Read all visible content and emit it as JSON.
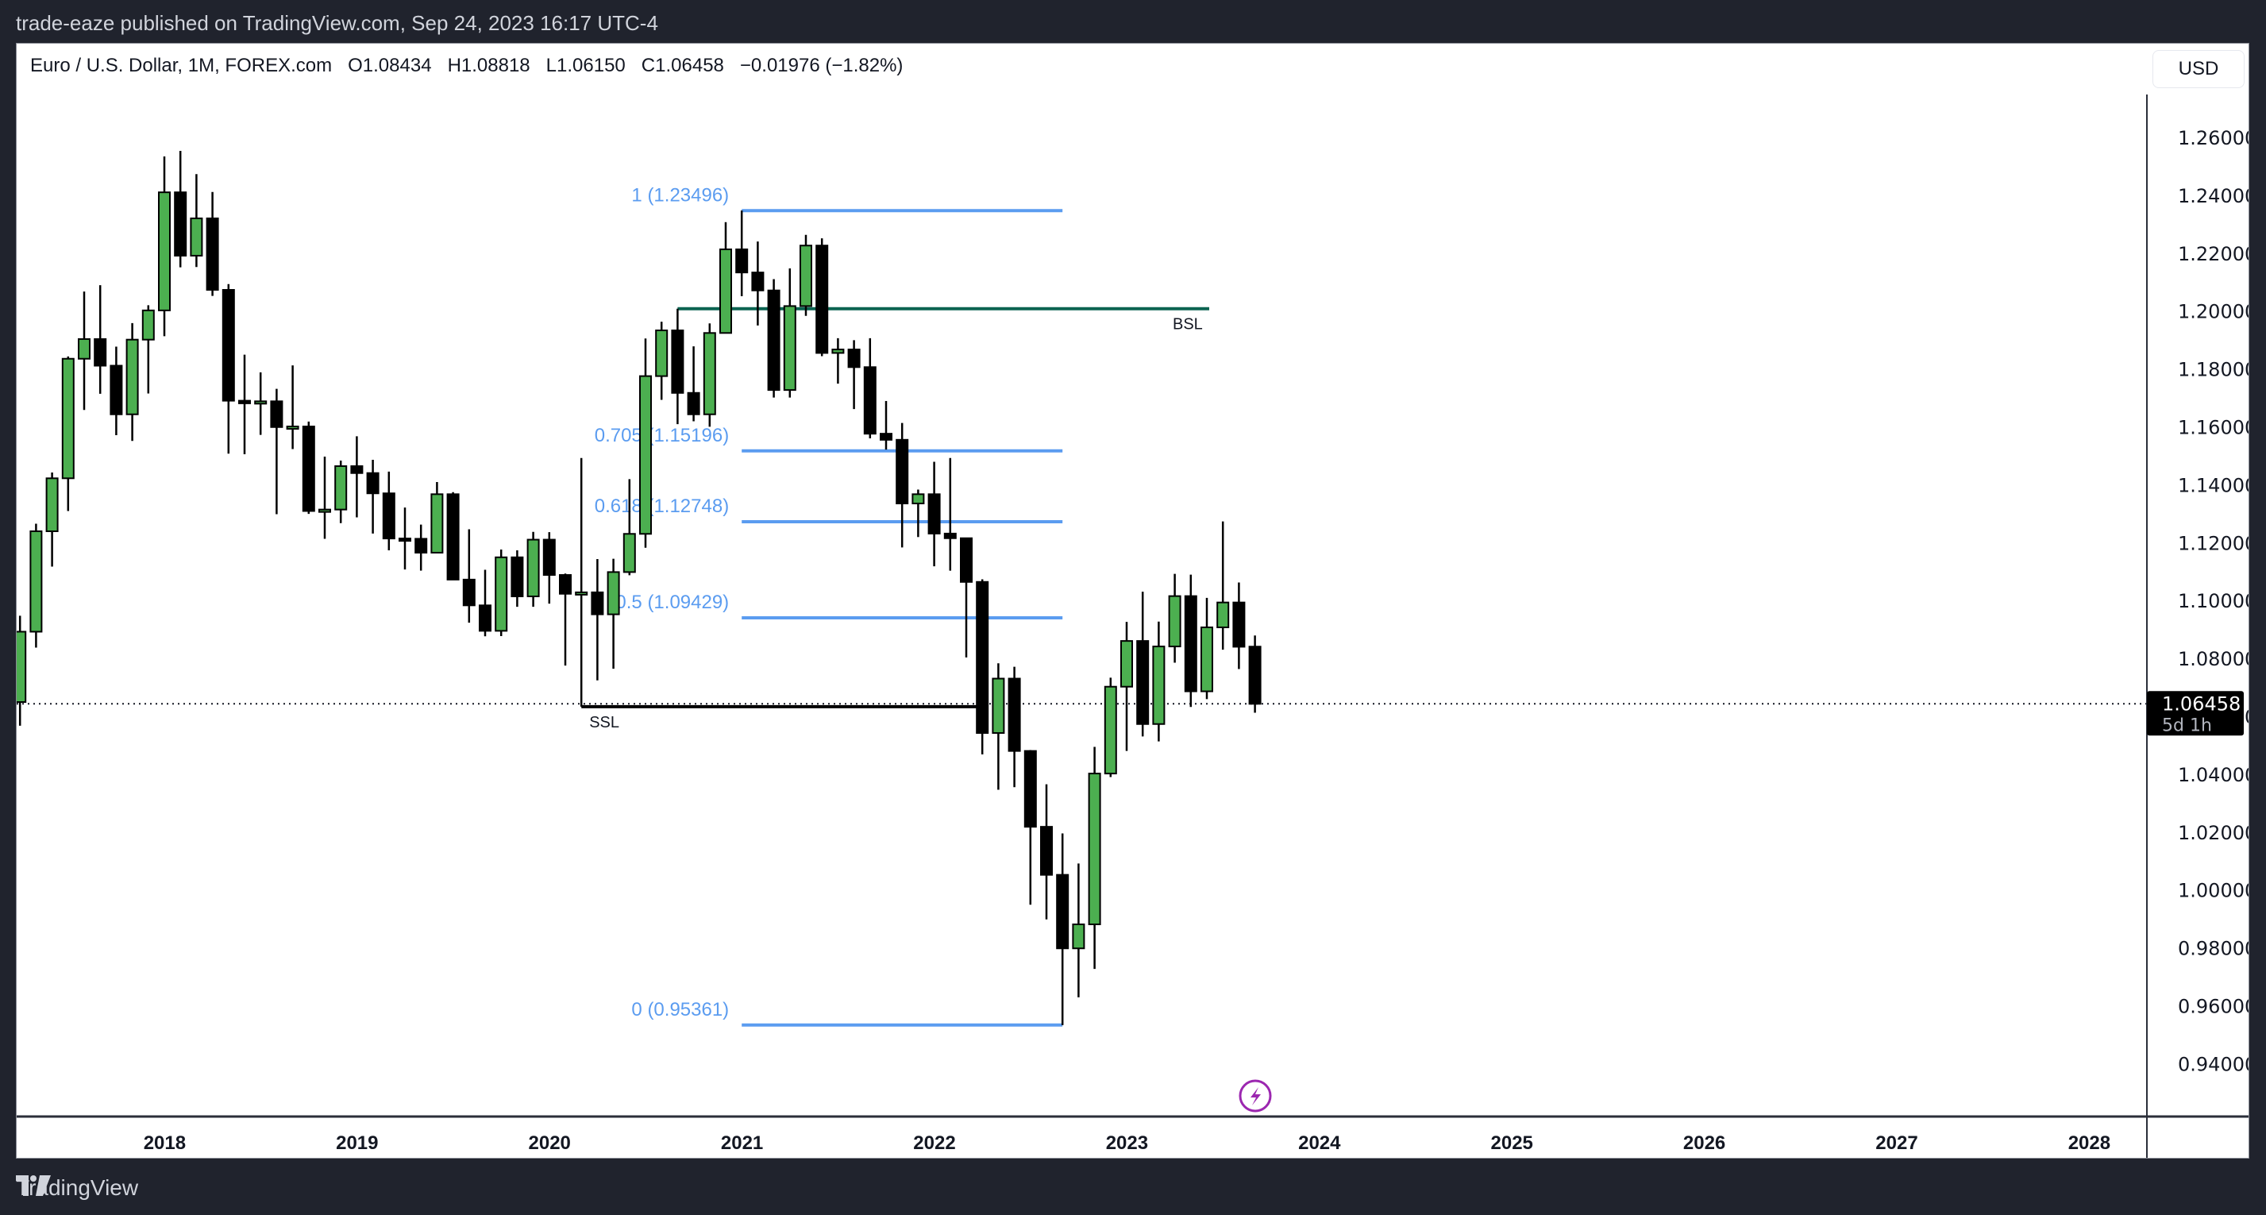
{
  "header": {
    "published": "trade-eaze published on TradingView.com, Sep 24, 2023 16:17 UTC-4"
  },
  "legend": {
    "symbol": "Euro / U.S. Dollar, 1M, FOREX.com",
    "open": "O1.08434",
    "high": "H1.08818",
    "low": "L1.06150",
    "close": "C1.06458",
    "change": "−0.01976 (−1.82%)"
  },
  "currency_button": "USD",
  "current_price": {
    "value": "1.06458",
    "countdown": "5d 1h"
  },
  "footer": {
    "brand": "TradingView"
  },
  "colors": {
    "up": "#4caf50",
    "down": "#000000",
    "fib": "#5b9cf0",
    "bsl": "#0b6351",
    "alert": "#9c27b0",
    "background": "#20232d"
  },
  "chart_data": {
    "type": "candlestick",
    "title": "Euro / U.S. Dollar, 1M, FOREX.com",
    "xlabel": "",
    "ylabel": "USD",
    "ylim": [
      0.925,
      1.275
    ],
    "y_ticks": [
      "1.26000",
      "1.24000",
      "1.22000",
      "1.20000",
      "1.18000",
      "1.16000",
      "1.14000",
      "1.12000",
      "1.10000",
      "1.08000",
      "1.06000",
      "1.04000",
      "1.02000",
      "1.00000",
      "0.98000",
      "0.96000",
      "0.94000"
    ],
    "x_ticks": [
      "2018",
      "2019",
      "2020",
      "2021",
      "2022",
      "2023",
      "2024",
      "2025",
      "2026",
      "2027",
      "2028"
    ],
    "grid": false,
    "first_month": "2017-04",
    "candles_ohlc": [
      [
        1.0652,
        1.095,
        1.057,
        1.0895
      ],
      [
        1.0895,
        1.1268,
        1.084,
        1.1242
      ],
      [
        1.1242,
        1.1445,
        1.112,
        1.1425
      ],
      [
        1.1425,
        1.1846,
        1.1312,
        1.1838
      ],
      [
        1.1838,
        1.207,
        1.1661,
        1.1906
      ],
      [
        1.1906,
        1.2092,
        1.1717,
        1.1814
      ],
      [
        1.1814,
        1.188,
        1.1574,
        1.1646
      ],
      [
        1.1646,
        1.1961,
        1.1554,
        1.1904
      ],
      [
        1.1904,
        1.2023,
        1.1718,
        1.2005
      ],
      [
        1.2005,
        1.2537,
        1.1916,
        1.2413
      ],
      [
        1.2413,
        1.2556,
        1.2154,
        1.2194
      ],
      [
        1.2194,
        1.2476,
        1.2155,
        1.2323
      ],
      [
        1.2323,
        1.2414,
        1.2055,
        1.2076
      ],
      [
        1.2076,
        1.2096,
        1.151,
        1.1693
      ],
      [
        1.1693,
        1.1852,
        1.1508,
        1.1684
      ],
      [
        1.1684,
        1.1791,
        1.1575,
        1.1691
      ],
      [
        1.1691,
        1.1734,
        1.1301,
        1.1602
      ],
      [
        1.1602,
        1.1815,
        1.1526,
        1.1604
      ],
      [
        1.1604,
        1.1621,
        1.1302,
        1.1312
      ],
      [
        1.1312,
        1.15,
        1.1216,
        1.1317
      ],
      [
        1.1317,
        1.1486,
        1.127,
        1.1467
      ],
      [
        1.1467,
        1.157,
        1.129,
        1.1443
      ],
      [
        1.1443,
        1.1489,
        1.1234,
        1.1373
      ],
      [
        1.1373,
        1.1448,
        1.1176,
        1.1217
      ],
      [
        1.1217,
        1.1324,
        1.111,
        1.1216
      ],
      [
        1.1216,
        1.1265,
        1.1106,
        1.1168
      ],
      [
        1.1168,
        1.1412,
        1.1181,
        1.137
      ],
      [
        1.137,
        1.1377,
        1.1101,
        1.1075
      ],
      [
        1.1075,
        1.1249,
        1.0926,
        1.0986
      ],
      [
        1.0986,
        1.1109,
        1.0879,
        1.0898
      ],
      [
        1.0898,
        1.1179,
        1.088,
        1.1152
      ],
      [
        1.1152,
        1.1176,
        1.0981,
        1.1017
      ],
      [
        1.1017,
        1.124,
        1.0981,
        1.1213
      ],
      [
        1.1213,
        1.1239,
        1.0992,
        1.1091
      ],
      [
        1.1091,
        1.1096,
        1.0778,
        1.1026
      ],
      [
        1.1026,
        1.1495,
        1.0636,
        1.1031
      ],
      [
        1.1031,
        1.1146,
        1.0727,
        1.0955
      ],
      [
        1.0955,
        1.1147,
        1.0767,
        1.1101
      ],
      [
        1.1101,
        1.1422,
        1.109,
        1.1233
      ],
      [
        1.1233,
        1.1908,
        1.1185,
        1.1778
      ],
      [
        1.1778,
        1.1966,
        1.1696,
        1.1936
      ],
      [
        1.1936,
        1.2011,
        1.1612,
        1.172
      ],
      [
        1.172,
        1.1881,
        1.1622,
        1.1646
      ],
      [
        1.1646,
        1.196,
        1.1603,
        1.1927
      ],
      [
        1.1927,
        1.231,
        1.1925,
        1.2216
      ],
      [
        1.2216,
        1.235,
        1.2054,
        1.2136
      ],
      [
        1.2136,
        1.2243,
        1.1953,
        1.2074
      ],
      [
        1.2074,
        1.2113,
        1.1704,
        1.173
      ],
      [
        1.173,
        1.215,
        1.1704,
        1.202
      ],
      [
        1.202,
        1.2266,
        1.1986,
        1.2229
      ],
      [
        1.2229,
        1.2254,
        1.1847,
        1.1858
      ],
      [
        1.1858,
        1.1909,
        1.1752,
        1.187
      ],
      [
        1.187,
        1.1902,
        1.1664,
        1.1809
      ],
      [
        1.1809,
        1.1909,
        1.1563,
        1.1579
      ],
      [
        1.1579,
        1.1692,
        1.1524,
        1.1558
      ],
      [
        1.1558,
        1.1616,
        1.1186,
        1.1338
      ],
      [
        1.1338,
        1.1386,
        1.1222,
        1.137
      ],
      [
        1.137,
        1.1482,
        1.1121,
        1.1234
      ],
      [
        1.1234,
        1.1495,
        1.1106,
        1.1218
      ],
      [
        1.1218,
        1.1184,
        1.0806,
        1.1067
      ],
      [
        1.1067,
        1.1076,
        1.0471,
        1.0545
      ],
      [
        1.0545,
        1.0786,
        1.0349,
        1.0733
      ],
      [
        1.0733,
        1.0774,
        1.0358,
        1.0483
      ],
      [
        1.0483,
        1.0486,
        0.9952,
        1.0221
      ],
      [
        1.0221,
        1.0368,
        0.9901,
        1.0055
      ],
      [
        1.0055,
        1.0198,
        0.9536,
        0.9801
      ],
      [
        0.9801,
        1.0094,
        0.9632,
        0.9884
      ],
      [
        0.9884,
        1.0497,
        0.973,
        1.0405
      ],
      [
        1.0405,
        1.0736,
        1.0393,
        1.0705
      ],
      [
        1.0705,
        1.0929,
        1.0483,
        1.0863
      ],
      [
        1.0863,
        1.1033,
        1.0533,
        1.0576
      ],
      [
        1.0576,
        1.093,
        1.0516,
        1.0844
      ],
      [
        1.0844,
        1.1095,
        1.0788,
        1.1018
      ],
      [
        1.1018,
        1.1092,
        1.0635,
        1.0689
      ],
      [
        1.0689,
        1.1012,
        1.0662,
        1.091
      ],
      [
        1.091,
        1.1276,
        1.0833,
        1.0996
      ],
      [
        1.0996,
        1.1065,
        1.0766,
        1.0843
      ],
      [
        1.08434,
        1.08818,
        1.0615,
        1.06458
      ]
    ],
    "fibonacci": [
      {
        "label": "1 (1.23496)",
        "price": 1.23496
      },
      {
        "label": "0.705 (1.15196)",
        "price": 1.15196
      },
      {
        "label": "0.618 (1.12748)",
        "price": 1.12748
      },
      {
        "label": "0.5 (1.09429)",
        "price": 1.09429
      },
      {
        "label": "0 (0.95361)",
        "price": 0.95361
      }
    ],
    "annotations": [
      {
        "label": "BSL",
        "price": 1.2011,
        "from_month": "2020-09",
        "to_month": "2024-09"
      },
      {
        "label": "SSL",
        "price": 1.0636,
        "from_month": "2020-03",
        "to_month": "2022-04"
      }
    ],
    "last_price": 1.06458
  }
}
